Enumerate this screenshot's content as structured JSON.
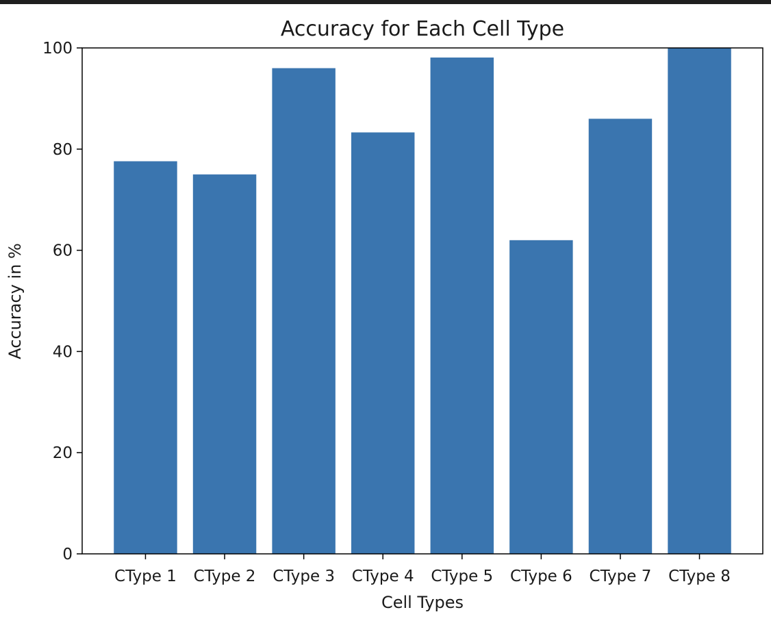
{
  "chart_data": {
    "type": "bar",
    "title": "Accuracy for Each Cell Type",
    "xlabel": "Cell Types",
    "ylabel": "Accuracy in %",
    "categories": [
      "CType 1",
      "CType 2",
      "CType 3",
      "CType 4",
      "CType 5",
      "CType 6",
      "CType 7",
      "CType 8"
    ],
    "values": [
      77.6,
      75.0,
      96.0,
      83.3,
      98.1,
      62.0,
      86.0,
      100.0
    ],
    "ylim": [
      0,
      100
    ],
    "yticks": [
      0,
      20,
      40,
      60,
      80,
      100
    ],
    "grid": false,
    "legend": "none",
    "bar_color": "#3a75af"
  }
}
